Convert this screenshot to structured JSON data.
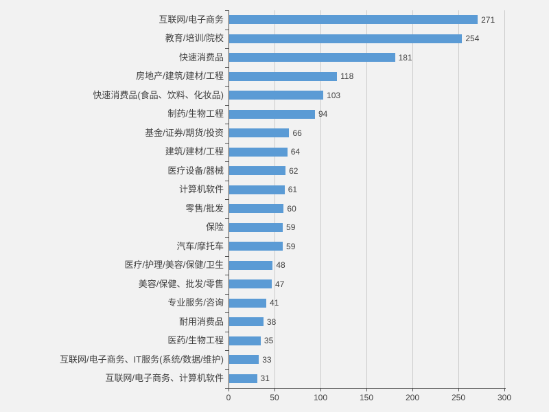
{
  "chart_data": {
    "type": "bar",
    "orientation": "horizontal",
    "categories": [
      "互联网/电子商务",
      "教育/培训/院校",
      "快速消费品",
      "房地产/建筑/建材/工程",
      "快速消费品(食品、饮料、化妆品)",
      "制药/生物工程",
      "基金/证券/期货/投资",
      "建筑/建材/工程",
      "医疗设备/器械",
      "计算机软件",
      "零售/批发",
      "保险",
      "汽车/摩托车",
      "医疗/护理/美容/保健/卫生",
      "美容/保健、批发/零售",
      "专业服务/咨询",
      "耐用消费品",
      "医药/生物工程",
      "互联网/电子商务、IT服务(系统/数据/维护)",
      "互联网/电子商务、计算机软件"
    ],
    "values": [
      271,
      254,
      181,
      118,
      103,
      94,
      66,
      64,
      62,
      61,
      60,
      59,
      59,
      48,
      47,
      41,
      38,
      35,
      33,
      31
    ],
    "data_labels_shown": true,
    "x_ticks": [
      0,
      50,
      100,
      150,
      200,
      250,
      300
    ],
    "xlim": [
      0,
      300
    ],
    "grid": "vertical",
    "legend": "none",
    "bar_color": "#5b9bd5",
    "background_color": "#f2f2f2",
    "gridline_color": "#c9c9c9",
    "axis_color": "#4a4a4a",
    "text_color": "#3f3f3f"
  }
}
